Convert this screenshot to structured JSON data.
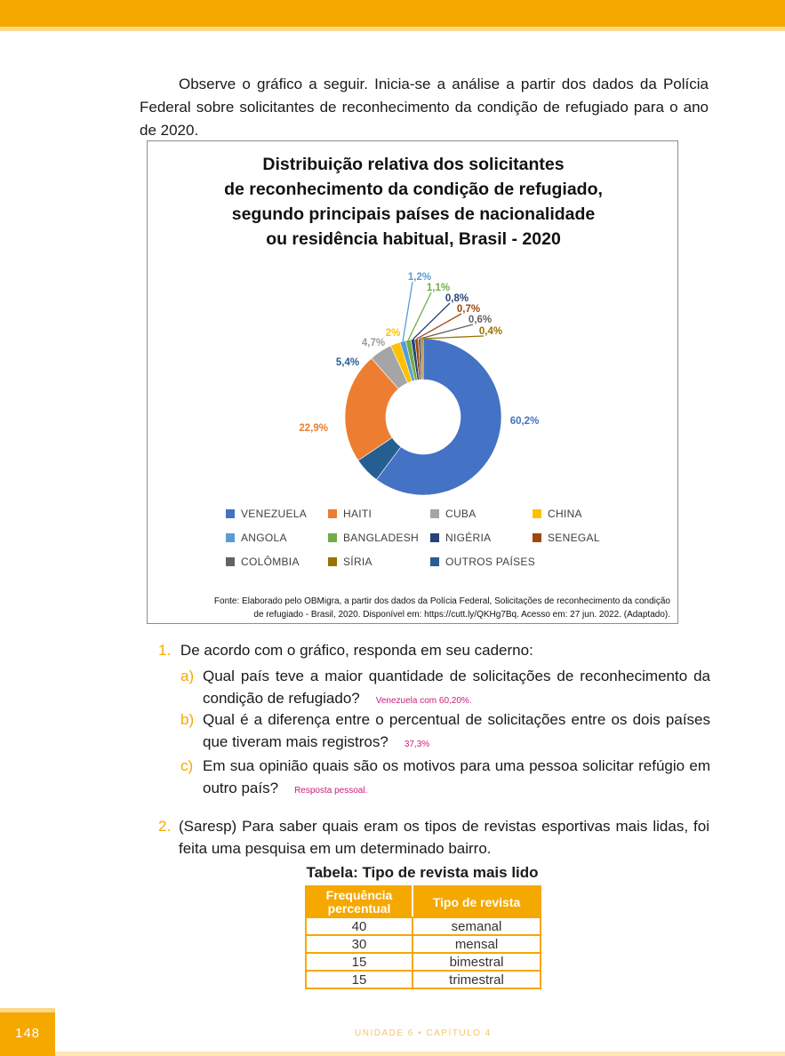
{
  "intro_text": "Observe o gráfico a seguir. Inicia-se a análise a partir dos dados da Polícia Federal sobre solicitantes de reconhecimento da condição de refugiado para o ano de 2020.",
  "chart_data": {
    "type": "pie",
    "donut": true,
    "title_lines": [
      "Distribuição relativa dos solicitantes",
      "de reconhecimento da condição de refugiado,",
      "segundo principais países de nacionalidade",
      "ou residência habitual, Brasil - 2020"
    ],
    "categories": [
      "VENEZUELA",
      "HAITI",
      "CUBA",
      "CHINA",
      "ANGOLA",
      "BANGLADESH",
      "NIGÉRIA",
      "SENEGAL",
      "COLÔMBIA",
      "SÍRIA",
      "OUTROS PAÍSES"
    ],
    "slices": [
      {
        "name": "VENEZUELA",
        "value": 60.2,
        "label": "60,2%",
        "color": "#4472c4"
      },
      {
        "name": "OUTROS PAÍSES",
        "value": 5.4,
        "label": "5,4%",
        "color": "#255e91"
      },
      {
        "name": "HAITI",
        "value": 22.9,
        "label": "22,9%",
        "color": "#ed7d31"
      },
      {
        "name": "CUBA",
        "value": 4.7,
        "label": "4,7%",
        "color": "#a5a5a5"
      },
      {
        "name": "CHINA",
        "value": 2,
        "label": "2%",
        "color": "#ffc000"
      },
      {
        "name": "ANGOLA",
        "value": 1.2,
        "label": "1,2%",
        "color": "#5b9bd5"
      },
      {
        "name": "BANGLADESH",
        "value": 1.1,
        "label": "1,1%",
        "color": "#70ad47"
      },
      {
        "name": "NIGÉRIA",
        "value": 0.8,
        "label": "0,8%",
        "color": "#264478"
      },
      {
        "name": "SENEGAL",
        "value": 0.7,
        "label": "0,7%",
        "color": "#9e480e"
      },
      {
        "name": "COLÔMBIA",
        "value": 0.6,
        "label": "0,6%",
        "color": "#636363"
      },
      {
        "name": "SÍRIA",
        "value": 0.4,
        "label": "0,4%",
        "color": "#997300"
      }
    ],
    "legend": [
      {
        "name": "VENEZUELA",
        "color": "#4472c4"
      },
      {
        "name": "HAITI",
        "color": "#ed7d31"
      },
      {
        "name": "CUBA",
        "color": "#a5a5a5"
      },
      {
        "name": "CHINA",
        "color": "#ffc000"
      },
      {
        "name": "ANGOLA",
        "color": "#5b9bd5"
      },
      {
        "name": "BANGLADESH",
        "color": "#70ad47"
      },
      {
        "name": "NIGÉRIA",
        "color": "#264478"
      },
      {
        "name": "SENEGAL",
        "color": "#9e480e"
      },
      {
        "name": "COLÔMBIA",
        "color": "#636363"
      },
      {
        "name": "SÍRIA",
        "color": "#997300"
      },
      {
        "name": "OUTROS PAÍSES",
        "color": "#255e91"
      }
    ],
    "legend_placement": "bottom"
  },
  "source_line1": "Fonte: Elaborado pelo OBMigra, a partir dos dados da Polícia Federal, Solicitações de reconhecimento da condição",
  "source_line2": "de refugiado - Brasil, 2020. Disponível em: https://cutt.ly/QKHg7Bq. Acesso em: 27 jun. 2022. (Adaptado).",
  "question1": {
    "number": "1.",
    "text": "De acordo com o gráfico, responda em seu caderno:",
    "items": [
      {
        "letter": "a)",
        "text": "Qual país teve a maior quantidade de solicitações de reconhecimento da condição de refugiado?",
        "answer": "Venezuela com 60,20%."
      },
      {
        "letter": "b)",
        "text": "Qual é a diferença entre o percentual de solicitações entre os dois pa­íses que tiveram mais registros?",
        "answer": "37,3%"
      },
      {
        "letter": "c)",
        "text": "Em sua opinião quais são os motivos para uma pessoa solicitar refúgio em outro país?",
        "answer": "Resposta pessoal."
      }
    ]
  },
  "question2": {
    "number": "2.",
    "text": "(Saresp) Para saber quais eram os tipos de revistas esportivas mais lidas, foi feita uma pesquisa em um determinado bairro."
  },
  "table": {
    "title": "Tabela: Tipo de revista mais lido",
    "headers": [
      "Frequência percentual",
      "Tipo de revista"
    ],
    "rows": [
      [
        "40",
        "semanal"
      ],
      [
        "30",
        "mensal"
      ],
      [
        "15",
        "bimestral"
      ],
      [
        "15",
        "trimestral"
      ]
    ]
  },
  "page_number": "148",
  "footer": "UNIDADE 6  •  CAPÍTULO 4",
  "colors": {
    "accent": "#f5a800",
    "answer": "#cc1d7a"
  }
}
